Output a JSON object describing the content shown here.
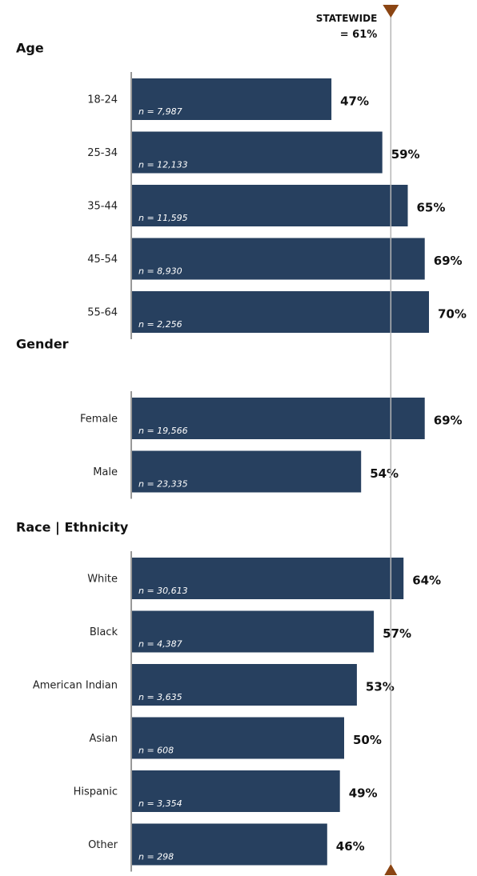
{
  "chart_data": {
    "type": "bar",
    "orientation": "horizontal",
    "xlim": [
      0,
      100
    ],
    "bar_color": "#27405F",
    "reference": {
      "label_line1": "STATEWIDE",
      "label_line2": "= 61%",
      "value": 61,
      "marker_color": "#8B4513"
    },
    "groups": [
      {
        "title": "Age",
        "bars": [
          {
            "category": "18-24",
            "value": 47,
            "label": "47%",
            "n": "n = 7,987"
          },
          {
            "category": "25-34",
            "value": 59,
            "label": "59%",
            "n": "n = 12,133"
          },
          {
            "category": "35-44",
            "value": 65,
            "label": "65%",
            "n": "n = 11,595"
          },
          {
            "category": "45-54",
            "value": 69,
            "label": "69%",
            "n": "n = 8,930"
          },
          {
            "category": "55-64",
            "value": 70,
            "label": "70%",
            "n": "n = 2,256"
          }
        ]
      },
      {
        "title": "Gender",
        "bars": [
          {
            "category": "Female",
            "value": 69,
            "label": "69%",
            "n": "n = 19,566"
          },
          {
            "category": "Male",
            "value": 54,
            "label": "54%",
            "n": "n = 23,335"
          }
        ]
      },
      {
        "title": "Race | Ethnicity",
        "bars": [
          {
            "category": "White",
            "value": 64,
            "label": "64%",
            "n": "n = 30,613"
          },
          {
            "category": "Black",
            "value": 57,
            "label": "57%",
            "n": "n = 4,387"
          },
          {
            "category": "American Indian",
            "value": 53,
            "label": "53%",
            "n": "n = 3,635"
          },
          {
            "category": "Asian",
            "value": 50,
            "label": "50%",
            "n": "n = 608"
          },
          {
            "category": "Hispanic",
            "value": 49,
            "label": "49%",
            "n": "n = 3,354"
          },
          {
            "category": "Other",
            "value": 46,
            "label": "46%",
            "n": "n = 298"
          }
        ]
      }
    ]
  }
}
